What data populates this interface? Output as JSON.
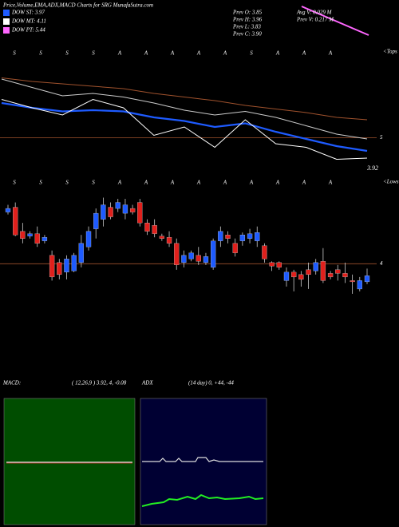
{
  "header": {
    "title": "Price,Volume,EMA,ADX,MACD Charts for SRG MunafaSutra.com",
    "dow": [
      {
        "label": "DOW ST: 3.97",
        "color": "#1e5bff"
      },
      {
        "label": "DOW MT: 4.11",
        "color": "#ffffff"
      },
      {
        "label": "DOW PT: 5.44",
        "color": "#ff66ff"
      }
    ],
    "stats": [
      "Prev O: 3.85",
      "Prev H: 3.96",
      "Prev L: 3.83",
      "Prev C: 3.90",
      "Avg V: 0.029 M",
      "Prev V: 0.217 M"
    ]
  },
  "markers": {
    "top": [
      "S",
      "S",
      "S",
      "S",
      "A",
      "A",
      "A",
      "A",
      "A",
      "S",
      "A",
      "A",
      "A"
    ],
    "tops": "<Tops",
    "bottom": [
      "S",
      "S",
      "S",
      "S",
      "A",
      "A",
      "A",
      "A",
      "A",
      "A",
      "A",
      "A",
      "A"
    ],
    "lows": "<Lows",
    "last": "3.92"
  },
  "chart_data": [
    {
      "type": "line",
      "categories": [
        null,
        null,
        null,
        null,
        null,
        null,
        null,
        null,
        null,
        null,
        null,
        null,
        null
      ],
      "ylim": [
        4.75,
        5.55
      ],
      "yticks": [
        5
      ],
      "series": [
        {
          "color": "#a0522d",
          "values": [
            5.5,
            5.47,
            5.45,
            5.43,
            5.41,
            5.37,
            5.34,
            5.31,
            5.27,
            5.24,
            5.21,
            5.17,
            5.15
          ]
        },
        {
          "color": "#cccccc",
          "values": [
            5.49,
            5.42,
            5.35,
            5.37,
            5.34,
            5.29,
            5.23,
            5.19,
            5.22,
            5.17,
            5.1,
            5.03,
            4.99
          ]
        },
        {
          "color": "#1e5bff",
          "values": [
            5.29,
            5.25,
            5.22,
            5.23,
            5.22,
            5.17,
            5.14,
            5.09,
            5.12,
            5.05,
            4.99,
            4.93,
            4.89
          ]
        },
        {
          "color": "#ffffff",
          "values": [
            5.32,
            5.25,
            5.19,
            5.32,
            5.25,
            5.02,
            5.09,
            4.92,
            5.15,
            4.95,
            4.92,
            4.82,
            4.83
          ]
        }
      ]
    },
    {
      "type": "candlestick",
      "categories": [
        null,
        null,
        null,
        null,
        null,
        null,
        null,
        null,
        null,
        null,
        null,
        null,
        null,
        null,
        null,
        null,
        null,
        null,
        null,
        null,
        null,
        null,
        null,
        null,
        null,
        null,
        null,
        null,
        null,
        null,
        null,
        null,
        null,
        null,
        null,
        null,
        null,
        null,
        null,
        null,
        null,
        null,
        null,
        null,
        null,
        null,
        null,
        null,
        null,
        null
      ],
      "ylim": [
        3.67,
        4.6
      ],
      "yticks": [
        4
      ],
      "up_color": "#1e5bff",
      "down_color": "#e0201c",
      "open": [
        4.43,
        4.47,
        4.27,
        4.23,
        4.25,
        4.19,
        4.07,
        4.01,
        3.93,
        3.94,
        4.01,
        4.14,
        4.29,
        4.37,
        4.47,
        4.46,
        4.42,
        4.46,
        4.51,
        4.34,
        4.32,
        4.23,
        4.22,
        4.17,
        4.01,
        4.04,
        4.07,
        4.01,
        3.97,
        4.19,
        4.24,
        4.17,
        4.19,
        4.21,
        4.19,
        4.15,
        4.01,
        4.01,
        3.86,
        3.93,
        3.91,
        3.95,
        3.94,
        4.02,
        3.92,
        3.95,
        3.92,
        3.86,
        3.79,
        3.85
      ],
      "high": [
        4.49,
        4.51,
        4.34,
        4.27,
        4.31,
        4.24,
        4.11,
        4.04,
        4.07,
        4.09,
        4.24,
        4.31,
        4.46,
        4.55,
        4.51,
        4.54,
        4.54,
        4.49,
        4.54,
        4.37,
        4.37,
        4.25,
        4.27,
        4.21,
        4.11,
        4.11,
        4.14,
        4.09,
        4.21,
        4.31,
        4.27,
        4.21,
        4.26,
        4.29,
        4.31,
        4.17,
        4.02,
        4.02,
        3.97,
        3.95,
        3.94,
        4.01,
        4.04,
        4.13,
        3.94,
        3.99,
        4.01,
        3.91,
        3.89,
        3.96
      ],
      "low": [
        4.41,
        4.23,
        4.17,
        4.21,
        4.14,
        4.17,
        3.86,
        3.87,
        3.87,
        3.93,
        3.97,
        4.11,
        4.21,
        4.31,
        4.37,
        4.43,
        4.37,
        4.41,
        4.31,
        4.24,
        4.22,
        4.19,
        4.14,
        3.95,
        3.97,
        4.02,
        3.99,
        3.99,
        3.95,
        4.14,
        4.17,
        4.06,
        4.15,
        4.17,
        4.14,
        4.01,
        3.94,
        3.95,
        3.81,
        3.77,
        3.81,
        3.79,
        3.91,
        3.84,
        3.87,
        3.86,
        3.84,
        3.75,
        3.77,
        3.83
      ],
      "close": [
        4.46,
        4.24,
        4.21,
        4.25,
        4.17,
        4.22,
        3.89,
        3.91,
        4.04,
        4.07,
        4.17,
        4.27,
        4.42,
        4.49,
        4.39,
        4.51,
        4.49,
        4.43,
        4.34,
        4.27,
        4.25,
        4.21,
        4.17,
        3.99,
        4.07,
        4.09,
        4.02,
        4.06,
        4.19,
        4.27,
        4.21,
        4.09,
        4.24,
        4.25,
        4.26,
        4.04,
        3.98,
        3.97,
        3.93,
        3.89,
        3.87,
        3.91,
        4.01,
        3.86,
        3.89,
        3.92,
        3.89,
        3.85,
        3.86,
        3.9
      ]
    }
  ],
  "panels": {
    "macd_label": "MACD:",
    "macd_params": "( 12,26,9 ) 3.92, 4, -0.08",
    "adx_label": "ADX",
    "adx_params": "(14  day) 0, +44, -44"
  }
}
